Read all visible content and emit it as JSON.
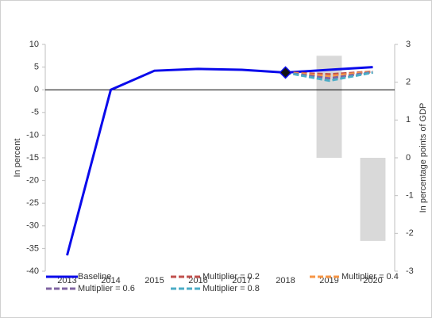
{
  "chart_data": {
    "type": "line",
    "categories": [
      "2013",
      "2014",
      "2015",
      "2016",
      "2017",
      "2018",
      "2019",
      "2020"
    ],
    "ylabel": "In percent",
    "y2label": "In percentage points of GDP",
    "ylim": [
      -40,
      10
    ],
    "yticks": [
      10,
      5,
      0,
      -5,
      -10,
      -15,
      -20,
      -25,
      -30,
      -35,
      -40
    ],
    "y2lim": [
      -3,
      3
    ],
    "y2ticks": [
      3,
      2,
      1,
      0,
      -1,
      -2,
      -3
    ],
    "zero_line": true,
    "series": [
      {
        "type": "bar",
        "axis": "y2",
        "color": "#d9d9d9",
        "values": [
          null,
          null,
          null,
          null,
          null,
          null,
          2.7,
          -2.2
        ]
      },
      {
        "name": "Baseline",
        "color": "#0a0aeb",
        "dashed": false,
        "marker_index": 5,
        "values": [
          -36.5,
          0,
          4.2,
          4.6,
          4.4,
          3.8,
          4.4,
          5.0
        ]
      },
      {
        "name": "Multiplier = 0.2",
        "color": "#c0504d",
        "dashed": true,
        "values": [
          null,
          null,
          null,
          null,
          null,
          3.8,
          3.4,
          4.0
        ]
      },
      {
        "name": "Multiplier = 0.4",
        "color": "#f79646",
        "dashed": true,
        "values": [
          null,
          null,
          null,
          null,
          null,
          3.8,
          3.0,
          4.0
        ]
      },
      {
        "name": "Multiplier = 0.6",
        "color": "#8064a2",
        "dashed": true,
        "values": [
          null,
          null,
          null,
          null,
          null,
          3.8,
          2.5,
          3.9
        ]
      },
      {
        "name": "Multiplier = 0.8",
        "color": "#4bacc6",
        "dashed": true,
        "values": [
          null,
          null,
          null,
          null,
          null,
          3.8,
          2.0,
          3.8
        ]
      }
    ]
  }
}
